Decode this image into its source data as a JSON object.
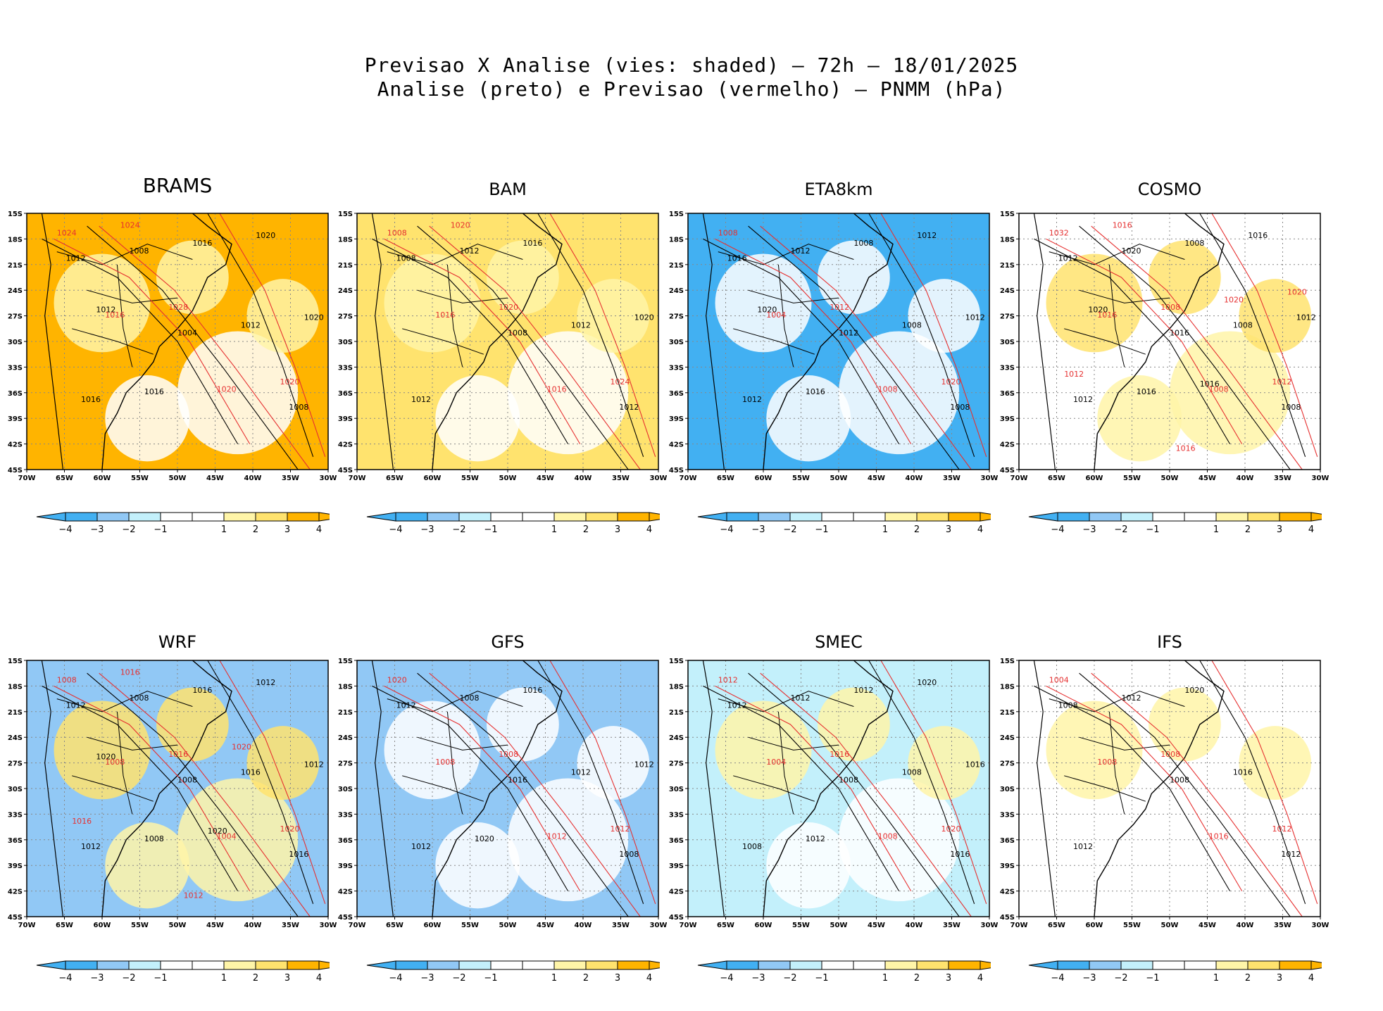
{
  "title": {
    "line1": "Previsao X Analise (vies: shaded) — 72h — 18/01/2025",
    "line2": "Analise (preto) e Previsao (vermelho) — PNMM (hPa)"
  },
  "colors": {
    "neg4": "#42b0f2",
    "neg3": "#91c8f5",
    "neg2": "#c3f0fb",
    "neg1": "#ffffff",
    "pos1": "#ffffff",
    "pos2": "#fff5a8",
    "pos3": "#ffe36e",
    "pos4": "#ffb400",
    "analysis_contour": "#000000",
    "forecast_contour": "#e63030"
  },
  "chart_data": [
    {
      "type": "heatmap",
      "model": "BRAMS",
      "variable": "bias PNMM (hPa)",
      "dominant_bias": 4,
      "secondary_bias": 2,
      "analysis_labels": [
        "1012",
        "1004",
        "1008",
        "1008",
        "1012",
        "1016",
        "1016",
        "1020",
        "1016",
        "1020",
        "1012"
      ],
      "forecast_labels": [
        "1016",
        "1020",
        "1024",
        "1028",
        "1020",
        "1024"
      ]
    },
    {
      "type": "heatmap",
      "model": "BAM",
      "variable": "bias PNMM (hPa)",
      "dominant_bias": 3,
      "secondary_bias": 2,
      "analysis_labels": [
        "1008",
        "1008",
        "1012",
        "1012",
        "1012",
        "1012",
        "1016",
        "1020"
      ],
      "forecast_labels": [
        "1016",
        "1016",
        "1008",
        "1020",
        "1024",
        "1020"
      ]
    },
    {
      "type": "heatmap",
      "model": "ETA8km",
      "variable": "bias PNMM (hPa)",
      "dominant_bias": -4,
      "secondary_bias": 0,
      "analysis_labels": [
        "1016",
        "1012",
        "1008",
        "1012",
        "1008",
        "1012",
        "1008",
        "1012",
        "1016",
        "1012",
        "1020"
      ],
      "forecast_labels": [
        "1004",
        "1008",
        "1008",
        "1012",
        "1020"
      ]
    },
    {
      "type": "heatmap",
      "model": "COSMO",
      "variable": "bias PNMM (hPa)",
      "dominant_bias": 1,
      "secondary_bias": 3,
      "analysis_labels": [
        "1012",
        "1016",
        "1008",
        "1020",
        "1008",
        "1012",
        "1008",
        "1012",
        "1016",
        "1016",
        "1020",
        "1016"
      ],
      "forecast_labels": [
        "1016",
        "1008",
        "1032",
        "1008",
        "1012",
        "1016",
        "1020",
        "1012",
        "1016",
        "1020"
      ]
    },
    {
      "type": "heatmap",
      "model": "WRF",
      "variable": "bias PNMM (hPa)",
      "dominant_bias": -3,
      "secondary_bias": 3,
      "analysis_labels": [
        "1012",
        "1008",
        "1016",
        "1008",
        "1016",
        "1012",
        "1016",
        "1012",
        "1008",
        "1012",
        "1020",
        "1020"
      ],
      "forecast_labels": [
        "1008",
        "1004",
        "1008",
        "1016",
        "1020",
        "1016",
        "1020",
        "1016",
        "1012"
      ]
    },
    {
      "type": "heatmap",
      "model": "GFS",
      "variable": "bias PNMM (hPa)",
      "dominant_bias": -3,
      "secondary_bias": 1,
      "analysis_labels": [
        "1012",
        "1016",
        "1008",
        "1008",
        "1012",
        "1012",
        "1016",
        "1012",
        "1020"
      ],
      "forecast_labels": [
        "1008",
        "1012",
        "1020",
        "1008",
        "1012"
      ]
    },
    {
      "type": "heatmap",
      "model": "SMEC",
      "variable": "bias PNMM (hPa)",
      "dominant_bias": -2,
      "secondary_bias": 2,
      "analysis_labels": [
        "1012",
        "1008",
        "1016",
        "1012",
        "1008",
        "1008",
        "1012",
        "1016",
        "1012",
        "1020"
      ],
      "forecast_labels": [
        "1004",
        "1008",
        "1012",
        "1016",
        "1020"
      ]
    },
    {
      "type": "heatmap",
      "model": "IFS",
      "variable": "bias PNMM (hPa)",
      "dominant_bias": 1,
      "secondary_bias": 2,
      "analysis_labels": [
        "1008",
        "1008",
        "1012",
        "1012",
        "1016",
        "1012",
        "1020"
      ],
      "forecast_labels": [
        "1008",
        "1016",
        "1004",
        "1008",
        "1012"
      ]
    }
  ],
  "axes": {
    "lat_ticks": [
      "15S",
      "18S",
      "21S",
      "24S",
      "27S",
      "30S",
      "33S",
      "36S",
      "39S",
      "42S",
      "45S"
    ],
    "lon_ticks": [
      "70W",
      "65W",
      "60W",
      "55W",
      "50W",
      "45W",
      "40W",
      "35W",
      "30W"
    ],
    "lat_range": [
      -45,
      -15
    ],
    "lon_range": [
      -70,
      -30
    ]
  },
  "colorbar": {
    "labels": [
      "−4",
      "−3",
      "−2",
      "−1",
      "1",
      "2",
      "3",
      "4"
    ]
  }
}
